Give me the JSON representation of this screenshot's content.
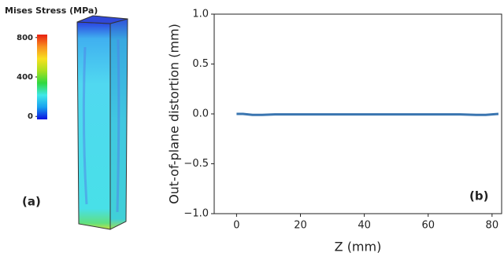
{
  "chart_data": [
    {
      "type": "colorbar",
      "title": "Mises Stress (MPa)",
      "ylim": [
        -30,
        830
      ],
      "yticks": [
        0,
        400,
        800
      ],
      "colors": [
        "#0a10e0",
        "#18a0f0",
        "#40e8e8",
        "#30d840",
        "#a8e020",
        "#f8e020",
        "#f89020",
        "#e82010"
      ],
      "annotation": "(a)"
    },
    {
      "type": "line",
      "xlabel": "Z (mm)",
      "ylabel": "Out-of-plane distortion (mm)",
      "annotation": "(b)",
      "x": [
        0,
        2,
        5,
        8,
        12,
        20,
        40,
        60,
        70,
        75,
        78,
        80,
        82
      ],
      "series": [
        {
          "color": "#3a75b0",
          "values": [
            0,
            0,
            -0.01,
            -0.01,
            -0.005,
            -0.005,
            -0.005,
            -0.005,
            -0.005,
            -0.01,
            -0.01,
            -0.005,
            0
          ]
        }
      ],
      "xlim": [
        -7,
        83
      ],
      "ylim": [
        -1,
        1
      ],
      "xticks": [
        0,
        20,
        40,
        60,
        80
      ],
      "yticks": [
        {
          "value": -1,
          "label": "−1.0"
        },
        {
          "value": -0.5,
          "label": "−0.5"
        },
        {
          "value": 0,
          "label": "0.0"
        },
        0.5,
        {
          "value": 1,
          "label": "1.0"
        }
      ]
    }
  ]
}
